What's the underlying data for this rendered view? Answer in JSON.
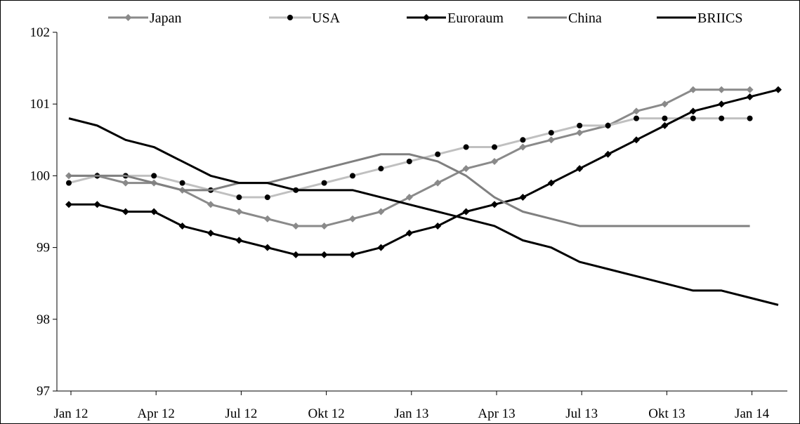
{
  "chart_data": {
    "type": "line",
    "title": "",
    "xlabel": "",
    "ylabel": "",
    "ylim": [
      97,
      102
    ],
    "yticks": [
      "97",
      "98",
      "99",
      "100",
      "101",
      "102"
    ],
    "xticks": [
      "Jan 12",
      "Apr 12",
      "Jul 12",
      "Okt 12",
      "Jan 13",
      "Apr 13",
      "Jul 13",
      "Okt 13",
      "Jan 14"
    ],
    "x": [
      "Jan 12",
      "Feb 12",
      "Mar 12",
      "Apr 12",
      "May 12",
      "Jun 12",
      "Jul 12",
      "Aug 12",
      "Sep 12",
      "Oct 12",
      "Nov 12",
      "Dec 12",
      "Jan 13",
      "Feb 13",
      "Mar 13",
      "Apr 13",
      "May 13",
      "Jun 13",
      "Jul 13",
      "Aug 13",
      "Sep 13",
      "Oct 13",
      "Nov 13",
      "Dec 13",
      "Jan 14",
      "Feb 14"
    ],
    "legend_position": "top",
    "grid": false,
    "series": [
      {
        "name": "Japan",
        "color": "#8a8a8a",
        "marker": "diamond",
        "values": [
          100.0,
          100.0,
          99.9,
          99.9,
          99.8,
          99.6,
          99.5,
          99.4,
          99.3,
          99.3,
          99.4,
          99.5,
          99.7,
          99.9,
          100.1,
          100.2,
          100.4,
          100.5,
          100.6,
          100.7,
          100.9,
          101.0,
          101.2,
          101.2,
          101.2,
          null
        ]
      },
      {
        "name": "USA",
        "color": "#c0c0c0",
        "marker": "circle",
        "values": [
          99.9,
          100.0,
          100.0,
          100.0,
          99.9,
          99.8,
          99.7,
          99.7,
          99.8,
          99.9,
          100.0,
          100.1,
          100.2,
          100.3,
          100.4,
          100.4,
          100.5,
          100.6,
          100.7,
          100.7,
          100.8,
          100.8,
          100.8,
          100.8,
          100.8,
          null
        ]
      },
      {
        "name": "Euroraum",
        "color": "#000000",
        "marker": "diamond",
        "values": [
          99.6,
          99.6,
          99.5,
          99.5,
          99.3,
          99.2,
          99.1,
          99.0,
          98.9,
          98.9,
          98.9,
          99.0,
          99.2,
          99.3,
          99.5,
          99.6,
          99.7,
          99.9,
          100.1,
          100.3,
          100.5,
          100.7,
          100.9,
          101.0,
          101.1,
          101.2
        ]
      },
      {
        "name": "China",
        "color": "#808080",
        "marker": "none",
        "values": [
          100.0,
          100.0,
          100.0,
          99.9,
          99.8,
          99.8,
          99.9,
          99.9,
          100.0,
          100.1,
          100.2,
          100.3,
          100.3,
          100.2,
          100.0,
          99.7,
          99.5,
          99.4,
          99.3,
          99.3,
          99.3,
          99.3,
          99.3,
          99.3,
          99.3,
          null
        ]
      },
      {
        "name": "BRIICS",
        "color": "#000000",
        "marker": "none",
        "values": [
          100.8,
          100.7,
          100.5,
          100.4,
          100.2,
          100.0,
          99.9,
          99.9,
          99.8,
          99.8,
          99.8,
          99.7,
          99.6,
          99.5,
          99.4,
          99.3,
          99.1,
          99.0,
          98.8,
          98.7,
          98.6,
          98.5,
          98.4,
          98.4,
          98.3,
          98.2
        ]
      }
    ]
  }
}
